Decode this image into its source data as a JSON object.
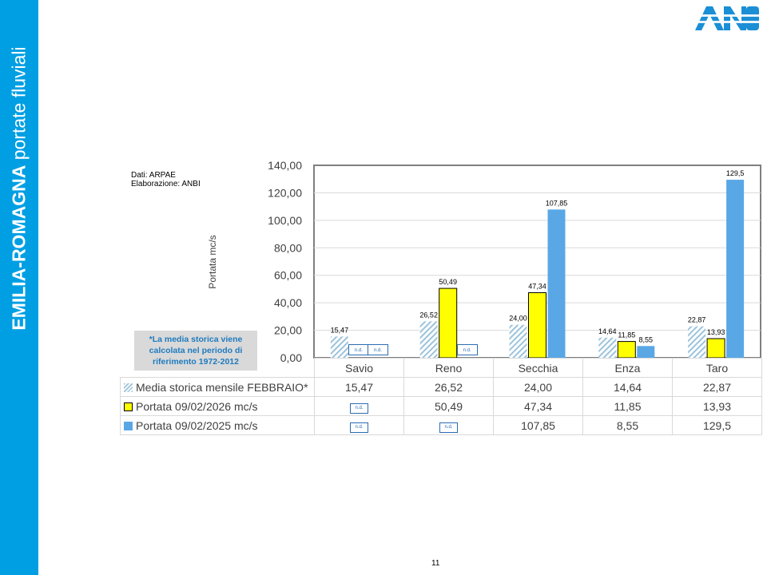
{
  "slide": {
    "sidebar_title_bold": "EMILIA-ROMAGNA",
    "sidebar_title_light": "portate fluviali",
    "logo_text": "ANBI",
    "source_line1": "Dati: ARPAE",
    "source_line2": "Elaborazione: ANBI",
    "note": "*La media storica viene calcolata nel periodo di riferimento 1972-2012",
    "page_number": "11",
    "colors": {
      "sidebar": "#009fe3",
      "series_2026": "#ffff00",
      "series_2025": "#5aa7e6",
      "historic_hatch": "#9cc3dc"
    }
  },
  "chart_data": {
    "type": "bar",
    "ylabel": "Portata mc/s",
    "ylim": [
      0,
      140
    ],
    "yticks": [
      "0,00",
      "20,00",
      "40,00",
      "60,00",
      "80,00",
      "100,00",
      "120,00",
      "140,00"
    ],
    "grid": true,
    "categories": [
      "Savio",
      "Reno",
      "Secchia",
      "Enza",
      "Taro"
    ],
    "missing_label": "n.d.",
    "series": [
      {
        "name": "Media storica mensile FEBBRAIO*",
        "values": [
          15.47,
          26.52,
          24.0,
          14.64,
          22.87
        ],
        "labels": [
          "15,47",
          "26,52",
          "24,00",
          "14,64",
          "22,87"
        ]
      },
      {
        "name": "Portata 09/02/2026 mc/s",
        "values": [
          null,
          50.49,
          47.34,
          11.85,
          13.93
        ],
        "labels": [
          "n.d.",
          "50,49",
          "47,34",
          "11,85",
          "13,93"
        ]
      },
      {
        "name": "Portata 09/02/2025 mc/s",
        "values": [
          null,
          null,
          107.85,
          8.55,
          129.5
        ],
        "labels": [
          "n.d.",
          "n.d.",
          "107,85",
          "8,55",
          "129,5"
        ]
      }
    ]
  }
}
